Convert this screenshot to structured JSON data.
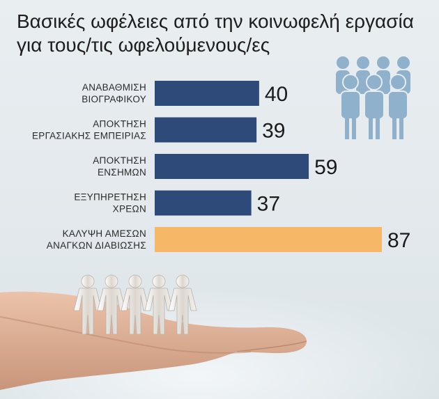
{
  "title_line1": "Βασικές ωφέλειες από την κοινωφελή εργασία",
  "title_line2": "για τους/τις ωφελούμενους/ες",
  "colors": {
    "bar_default": "#2e4a78",
    "bar_highlight": "#f6b866",
    "people_icon": "#8fb1cc"
  },
  "icons": [
    "people-group-icon",
    "paper-people-chain-icon",
    "open-hand-icon"
  ],
  "chart_data": {
    "type": "bar",
    "orientation": "horizontal",
    "title": "Βασικές ωφέλειες από την κοινωφελή εργασία για τους/τις ωφελούμενους/ες",
    "categories": [
      [
        "ΑΝΑΒΑΘΜΙΣΗ",
        "ΒΙΟΓΡΑΦΙΚΟΥ"
      ],
      [
        "ΑΠΟΚΤΗΣΗ",
        "ΕΡΓΑΣΙΑΚΗΣ ΕΜΠΕΙΡΙΑΣ"
      ],
      [
        "ΑΠΟΚΤΗΣΗ",
        "ΕΝΣΗΜΩΝ"
      ],
      [
        "ΕΞΥΠΗΡΕΤΗΣΗ",
        "ΧΡΕΩΝ"
      ],
      [
        "ΚΑΛΥΨΗ ΑΜΕΣΩΝ",
        "ΑΝΑΓΚΩΝ ΔΙΑΒΙΩΣΗΣ"
      ]
    ],
    "values": [
      40,
      39,
      59,
      37,
      87
    ],
    "highlight_index": 4,
    "xlabel": "",
    "ylabel": "",
    "xlim": [
      0,
      87
    ],
    "grid": false,
    "legend": "none"
  }
}
